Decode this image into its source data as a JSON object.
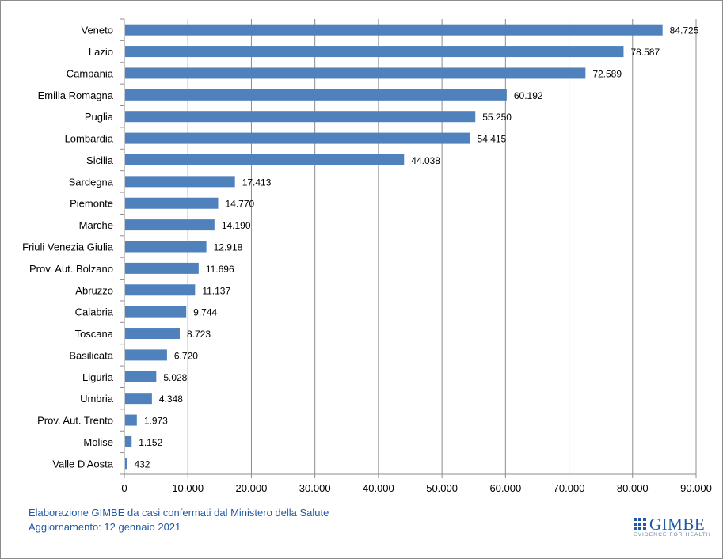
{
  "chart_data": {
    "type": "bar",
    "orientation": "horizontal",
    "categories": [
      "Veneto",
      "Lazio",
      "Campania",
      "Emilia Romagna",
      "Puglia",
      "Lombardia",
      "Sicilia",
      "Sardegna",
      "Piemonte",
      "Marche",
      "Friuli Venezia Giulia",
      "Prov. Aut. Bolzano",
      "Abruzzo",
      "Calabria",
      "Toscana",
      "Basilicata",
      "Liguria",
      "Umbria",
      "Prov. Aut. Trento",
      "Molise",
      "Valle D'Aosta"
    ],
    "values": [
      84725,
      78587,
      72589,
      60192,
      55250,
      54415,
      44038,
      17413,
      14770,
      14190,
      12918,
      11696,
      11137,
      9744,
      8723,
      6720,
      5028,
      4348,
      1973,
      1152,
      432
    ],
    "value_labels": [
      "84.725",
      "78.587",
      "72.589",
      "60.192",
      "55.250",
      "54.415",
      "44.038",
      "17.413",
      "14.770",
      "14.190",
      "12.918",
      "11.696",
      "11.137",
      "9.744",
      "8.723",
      "6.720",
      "5.028",
      "4.348",
      "1.973",
      "1.152",
      "432"
    ],
    "x_ticks": [
      0,
      10000,
      20000,
      30000,
      40000,
      50000,
      60000,
      70000,
      80000,
      90000
    ],
    "x_tick_labels": [
      "0",
      "10.000",
      "20.000",
      "30.000",
      "40.000",
      "50.000",
      "60.000",
      "70.000",
      "80.000",
      "90.000"
    ],
    "xlim": [
      0,
      90000
    ],
    "grid": true,
    "bar_color": "#4f81bd",
    "title": "",
    "xlabel": "",
    "ylabel": ""
  },
  "footer": {
    "source": "Elaborazione GIMBE da casi confermati dal Ministero della Salute",
    "updated": "Aggiornamento: 12 gennaio 2021"
  },
  "logo": {
    "name": "GIMBE",
    "tagline": "EVIDENCE FOR HEALTH"
  },
  "colors": {
    "accent": "#1f5aa6",
    "bar": "#4f81bd",
    "grid": "#8c8c8c"
  }
}
